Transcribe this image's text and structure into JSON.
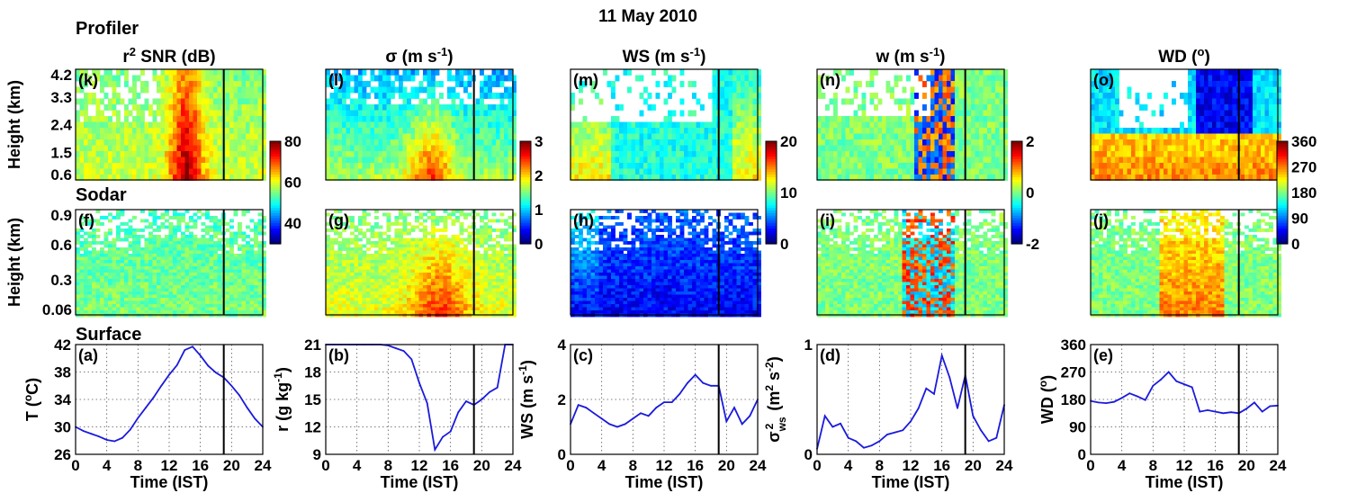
{
  "figure": {
    "title": "11 May 2010",
    "sections": {
      "profiler": "Profiler",
      "sodar": "Sodar",
      "surface": "Surface"
    },
    "height_label": "Height (km)",
    "time_label": "Time (IST)"
  },
  "chart_data": [
    {
      "id": "k",
      "type": "heatmap",
      "title_pre": "r",
      "title_sup": "2",
      "title_post": " SNR (dB)",
      "panel_label": "(k)",
      "row": "profiler",
      "col": 0,
      "yticks": [
        "4.2",
        "3.3",
        "2.4",
        "1.5",
        "0.6"
      ],
      "ylim": [
        0.6,
        4.2
      ],
      "xlim": [
        0,
        24
      ],
      "vertical_line_x": 19,
      "colormap": "jet",
      "clim": [
        30,
        80
      ]
    },
    {
      "id": "l",
      "type": "heatmap",
      "title_pre": "σ (m s",
      "title_sup": "-1",
      "title_post": ")",
      "panel_label": "(l)",
      "row": "profiler",
      "col": 1,
      "ylim": [
        0.6,
        4.2
      ],
      "xlim": [
        0,
        24
      ],
      "vertical_line_x": 19,
      "colormap": "jet",
      "clim": [
        0,
        3
      ]
    },
    {
      "id": "m",
      "type": "heatmap",
      "title_pre": "WS (m s",
      "title_sup": "-1",
      "title_post": ")",
      "panel_label": "(m)",
      "row": "profiler",
      "col": 2,
      "ylim": [
        0.6,
        4.2
      ],
      "xlim": [
        0,
        24
      ],
      "vertical_line_x": 19,
      "colormap": "jet",
      "clim": [
        0,
        20
      ]
    },
    {
      "id": "n",
      "type": "heatmap",
      "title_pre": "w (m s",
      "title_sup": "-1",
      "title_post": ")",
      "panel_label": "(n)",
      "row": "profiler",
      "col": 3,
      "ylim": [
        0.6,
        4.2
      ],
      "xlim": [
        0,
        24
      ],
      "vertical_line_x": 19,
      "colormap": "jet",
      "clim": [
        -2,
        2
      ]
    },
    {
      "id": "o",
      "type": "heatmap",
      "title_pre": "WD (",
      "title_sup": "o",
      "title_post": ")",
      "panel_label": "(o)",
      "row": "profiler",
      "col": 4,
      "ylim": [
        0.6,
        4.2
      ],
      "xlim": [
        0,
        24
      ],
      "vertical_line_x": 19,
      "colormap": "jet",
      "clim": [
        0,
        360
      ]
    },
    {
      "id": "f",
      "type": "heatmap",
      "panel_label": "(f)",
      "row": "sodar",
      "col": 0,
      "yticks": [
        "0.9",
        "0.6",
        "0.3",
        "0.06"
      ],
      "ylim": [
        0.06,
        0.9
      ],
      "xlim": [
        0,
        24
      ],
      "vertical_line_x": 19,
      "colormap": "jet"
    },
    {
      "id": "g",
      "type": "heatmap",
      "panel_label": "(g)",
      "row": "sodar",
      "col": 1,
      "ylim": [
        0.06,
        0.9
      ],
      "xlim": [
        0,
        24
      ],
      "vertical_line_x": 19,
      "colormap": "jet"
    },
    {
      "id": "h",
      "type": "heatmap",
      "panel_label": "(h)",
      "row": "sodar",
      "col": 2,
      "ylim": [
        0.06,
        0.9
      ],
      "xlim": [
        0,
        24
      ],
      "vertical_line_x": 19,
      "colormap": "jet"
    },
    {
      "id": "i",
      "type": "heatmap",
      "panel_label": "(i)",
      "row": "sodar",
      "col": 3,
      "ylim": [
        0.06,
        0.9
      ],
      "xlim": [
        0,
        24
      ],
      "vertical_line_x": 19,
      "colormap": "jet"
    },
    {
      "id": "j",
      "type": "heatmap",
      "panel_label": "(j)",
      "row": "sodar",
      "col": 4,
      "ylim": [
        0.06,
        0.9
      ],
      "xlim": [
        0,
        24
      ],
      "vertical_line_x": 19,
      "colormap": "jet"
    },
    {
      "id": "a",
      "type": "line",
      "panel_label": "(a)",
      "row": "surface",
      "col": 0,
      "ylabel": "T (oC)",
      "ylabel_html": [
        "T (",
        "o",
        "C)"
      ],
      "xlabel": "Time (IST)",
      "xticks": [
        "0",
        "4",
        "8",
        "12",
        "16",
        "20",
        "24"
      ],
      "yticks": [
        "26",
        "30",
        "34",
        "38",
        "42"
      ],
      "ylim": [
        26,
        42
      ],
      "xlim": [
        0,
        24
      ],
      "vertical_line_x": 19,
      "grid": true,
      "x": [
        0,
        1,
        2,
        3,
        4,
        5,
        6,
        7,
        8,
        9,
        10,
        11,
        12,
        13,
        14,
        15,
        16,
        17,
        18,
        19,
        20,
        21,
        22,
        23,
        24
      ],
      "y": [
        30.0,
        29.4,
        29.0,
        28.6,
        28.1,
        27.9,
        28.4,
        29.6,
        31.3,
        32.8,
        34.3,
        36.0,
        37.6,
        39.0,
        41.2,
        41.7,
        40.4,
        38.9,
        37.9,
        37.2,
        36.0,
        34.6,
        32.8,
        31.2,
        30.0
      ]
    },
    {
      "id": "b",
      "type": "line",
      "panel_label": "(b)",
      "row": "surface",
      "col": 1,
      "ylabel": "r (g kg-1)",
      "ylabel_html": [
        "r (g kg",
        "-1",
        ")"
      ],
      "xlabel": "Time (IST)",
      "xticks": [
        "0",
        "4",
        "8",
        "12",
        "16",
        "20",
        "24"
      ],
      "yticks": [
        "9",
        "12",
        "15",
        "18",
        "21"
      ],
      "ylim": [
        9,
        21
      ],
      "xlim": [
        0,
        24
      ],
      "vertical_line_x": 19,
      "grid": true,
      "x": [
        0,
        1,
        2,
        3,
        4,
        5,
        6,
        7,
        8,
        9,
        10,
        11,
        12,
        13,
        14,
        15,
        16,
        17,
        18,
        19,
        20,
        21,
        22,
        23,
        24
      ],
      "y": [
        21.0,
        21.1,
        21.2,
        21.1,
        21.1,
        21.0,
        21.0,
        21.0,
        20.9,
        20.6,
        20.3,
        19.4,
        16.8,
        14.6,
        9.5,
        10.9,
        11.5,
        13.6,
        14.8,
        14.4,
        15.0,
        15.8,
        16.3,
        21.5,
        21.6
      ]
    },
    {
      "id": "c",
      "type": "line",
      "panel_label": "(c)",
      "row": "surface",
      "col": 2,
      "ylabel": "WS (m s-1)",
      "ylabel_html": [
        "WS (m s",
        "-1",
        ")"
      ],
      "xlabel": "Time (IST)",
      "xticks": [
        "0",
        "4",
        "8",
        "12",
        "16",
        "20",
        "24"
      ],
      "yticks": [
        "0",
        "2",
        "4"
      ],
      "ylim": [
        0,
        4
      ],
      "xlim": [
        0,
        24
      ],
      "vertical_line_x": 19,
      "grid": true,
      "x": [
        0,
        1,
        2,
        3,
        4,
        5,
        6,
        7,
        8,
        9,
        10,
        11,
        12,
        13,
        14,
        15,
        16,
        17,
        18,
        19,
        20,
        21,
        22,
        23,
        24
      ],
      "y": [
        1.1,
        1.8,
        1.7,
        1.5,
        1.3,
        1.1,
        1.0,
        1.1,
        1.3,
        1.5,
        1.4,
        1.7,
        1.9,
        1.9,
        2.2,
        2.6,
        2.9,
        2.6,
        2.5,
        2.5,
        1.2,
        1.7,
        1.1,
        1.4,
        2.0
      ]
    },
    {
      "id": "d",
      "type": "line",
      "panel_label": "(d)",
      "row": "surface",
      "col": 3,
      "ylabel": "σ2ws (m2 s-2)",
      "ylabel_html": [
        "σ",
        "ws",
        "2",
        "(m",
        "2",
        " s",
        "-2",
        ")"
      ],
      "xlabel": "Time (IST)",
      "xticks": [
        "0",
        "4",
        "8",
        "12",
        "16",
        "20",
        "24"
      ],
      "yticks": [
        "0",
        "1"
      ],
      "ylim": [
        0,
        1
      ],
      "xlim": [
        0,
        24
      ],
      "vertical_line_x": 19,
      "grid": true,
      "x": [
        0,
        1,
        2,
        3,
        4,
        5,
        6,
        7,
        8,
        9,
        10,
        11,
        12,
        13,
        14,
        15,
        16,
        17,
        18,
        19,
        20,
        21,
        22,
        23,
        24
      ],
      "y": [
        0.05,
        0.35,
        0.25,
        0.28,
        0.15,
        0.12,
        0.06,
        0.08,
        0.12,
        0.18,
        0.2,
        0.22,
        0.3,
        0.42,
        0.6,
        0.55,
        0.9,
        0.7,
        0.42,
        0.72,
        0.35,
        0.22,
        0.12,
        0.15,
        0.45
      ]
    },
    {
      "id": "e",
      "type": "line",
      "panel_label": "(e)",
      "row": "surface",
      "col": 4,
      "ylabel": "WD (o)",
      "ylabel_html": [
        "WD (",
        "o",
        ")"
      ],
      "xlabel": "Time (IST)",
      "xticks": [
        "0",
        "4",
        "8",
        "12",
        "16",
        "20",
        "24"
      ],
      "yticks": [
        "0",
        "90",
        "180",
        "270",
        "360"
      ],
      "ylim": [
        0,
        360
      ],
      "xlim": [
        0,
        24
      ],
      "vertical_line_x": 19,
      "grid": true,
      "x": [
        0,
        1,
        2,
        3,
        4,
        5,
        6,
        7,
        8,
        9,
        10,
        11,
        12,
        13,
        14,
        15,
        16,
        17,
        18,
        19,
        20,
        21,
        22,
        23,
        24
      ],
      "y": [
        175,
        170,
        168,
        172,
        185,
        200,
        190,
        178,
        225,
        245,
        270,
        240,
        230,
        220,
        140,
        145,
        140,
        135,
        138,
        135,
        150,
        170,
        140,
        158,
        160
      ]
    }
  ],
  "colorbars": [
    {
      "id": "cb1",
      "ticks": [
        "80",
        "60",
        "40"
      ],
      "clim": [
        30,
        80
      ]
    },
    {
      "id": "cb2",
      "ticks": [
        "3",
        "2",
        "1",
        "0"
      ],
      "clim": [
        0,
        3
      ]
    },
    {
      "id": "cb3",
      "ticks": [
        "20",
        "10",
        "0"
      ],
      "clim": [
        0,
        20
      ]
    },
    {
      "id": "cb4",
      "ticks": [
        "2",
        "0",
        "-2"
      ],
      "clim": [
        -2,
        2
      ]
    },
    {
      "id": "cb5",
      "ticks": [
        "360",
        "270",
        "180",
        "90",
        "0"
      ],
      "clim": [
        0,
        360
      ]
    }
  ],
  "colors": {
    "line": "#1a1adc",
    "axis": "#000000",
    "missing": "#ffffff"
  }
}
